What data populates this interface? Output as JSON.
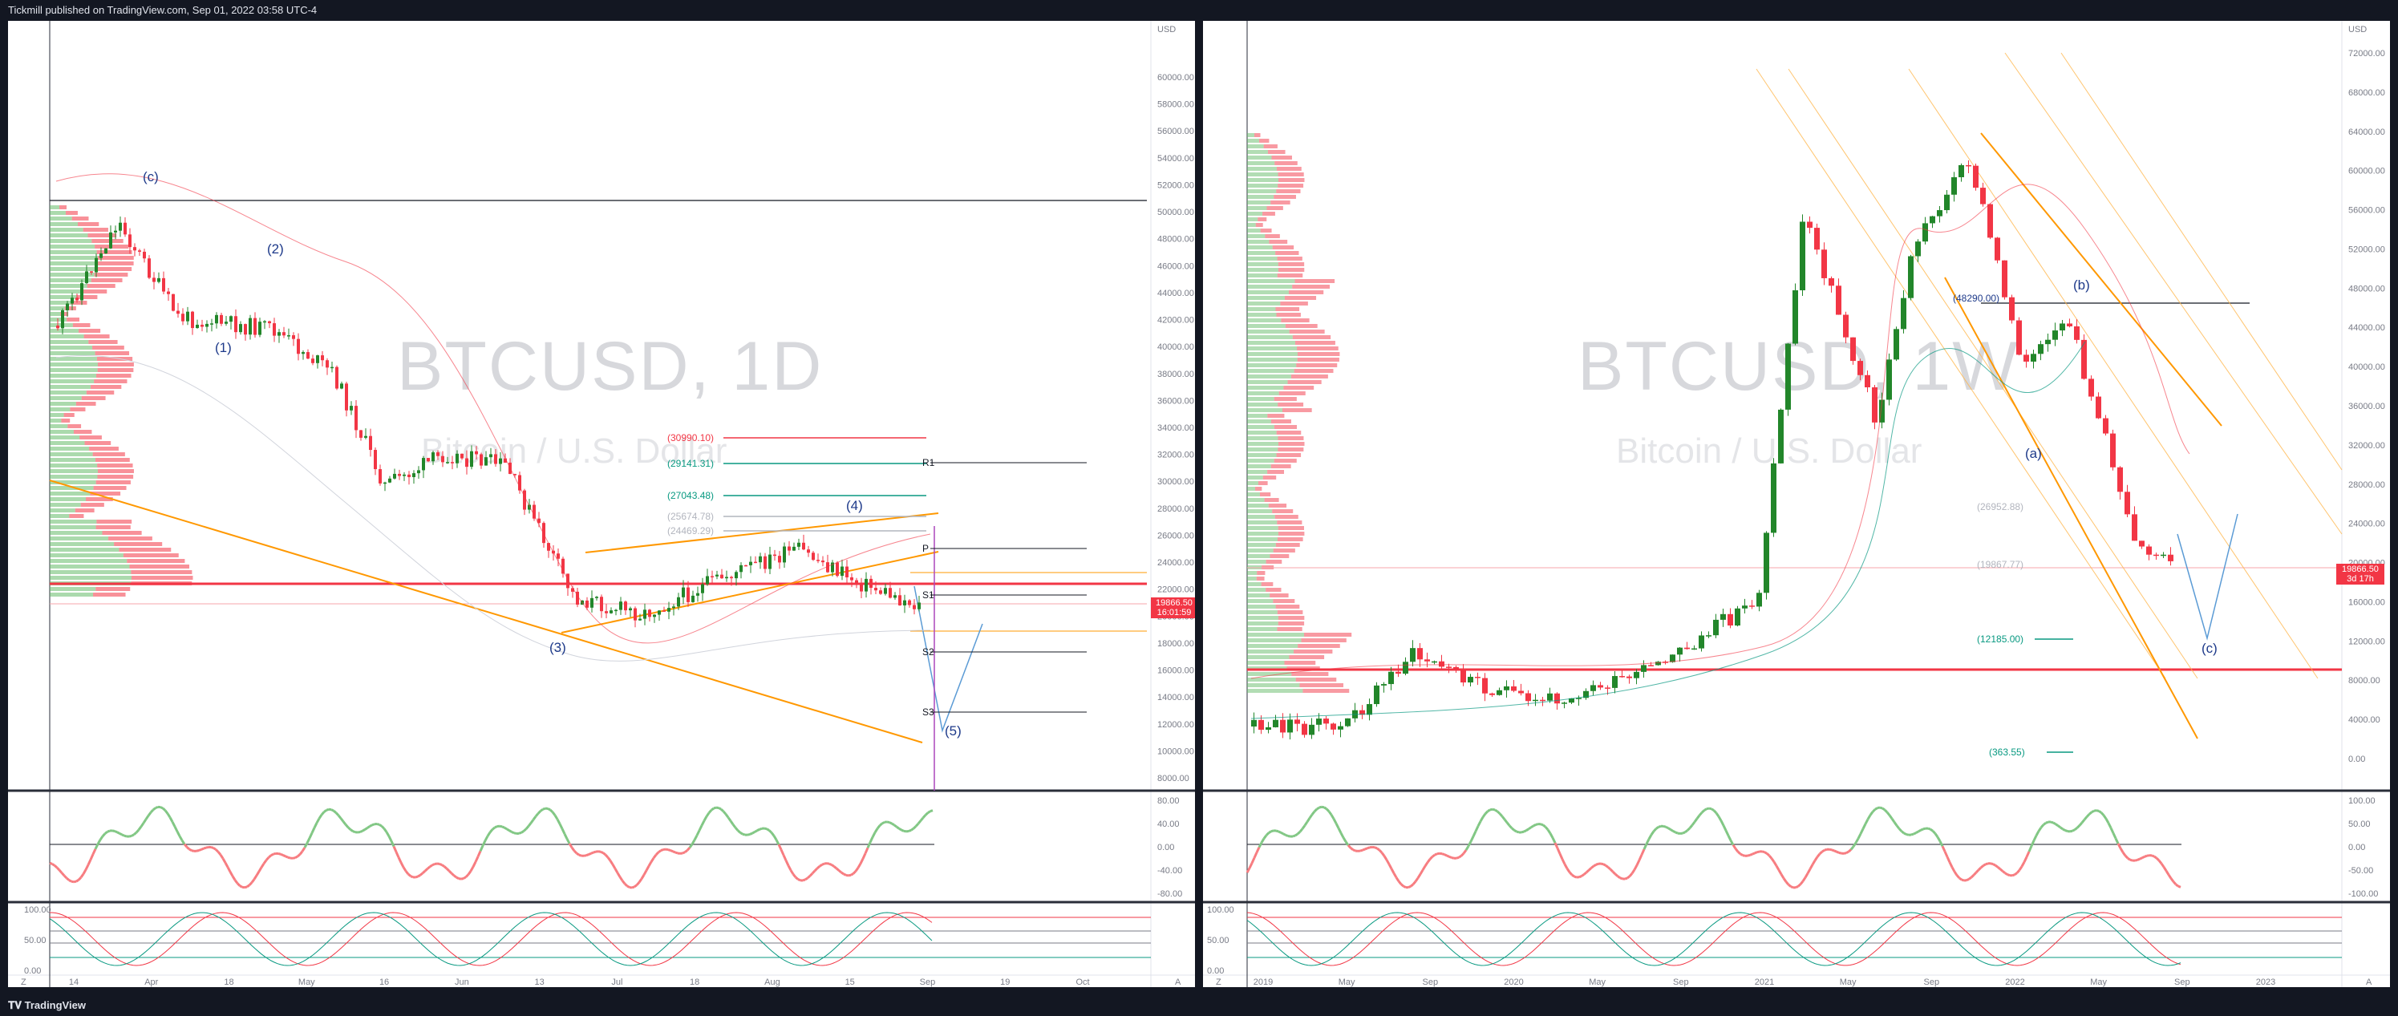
{
  "header": {
    "published": "Tickmill published on TradingView.com, Sep 01, 2022 03:58 UTC-4"
  },
  "footer": {
    "brand": "TradingView",
    "brand_icon": "tradingview-logo-icon"
  },
  "left_chart": {
    "symbol": "BTCUSD, 1D",
    "description": "Bitcoin / U.S. Dollar",
    "price_tag": {
      "price": "19866.50",
      "countdown": "16:01:59"
    },
    "axis_currency": "USD",
    "price_axis": [
      "60000.00",
      "58000.00",
      "56000.00",
      "54000.00",
      "52000.00",
      "50000.00",
      "48000.00",
      "46000.00",
      "44000.00",
      "42000.00",
      "40000.00",
      "38000.00",
      "36000.00",
      "34000.00",
      "32000.00",
      "30000.00",
      "28000.00",
      "26000.00",
      "24000.00",
      "22000.00",
      "20000.00",
      "18000.00",
      "16000.00",
      "14000.00",
      "12000.00",
      "10000.00",
      "8000.00"
    ],
    "time_axis": [
      "14",
      "Apr",
      "18",
      "May",
      "16",
      "Jun",
      "13",
      "Jul",
      "18",
      "Aug",
      "15",
      "Sep",
      "19",
      "Oct"
    ],
    "wave_labels": [
      "(c)",
      "(2)",
      "(1)",
      "(3)",
      "(4)",
      "(5)"
    ],
    "levels": [
      {
        "text": "(30990.10)",
        "color": "#f23645"
      },
      {
        "text": "(29141.31)",
        "color": "#089981"
      },
      {
        "text": "(27043.48)",
        "color": "#089981"
      },
      {
        "text": "(25674.78)",
        "color": "#b2b5be"
      },
      {
        "text": "(24469.29)",
        "color": "#b2b5be"
      }
    ],
    "pivots": [
      "R1",
      "P",
      "S1",
      "S2",
      "S3"
    ],
    "rsi_axis": [
      "80.00",
      "40.00",
      "0.00",
      "-40.00",
      "-80.00"
    ],
    "stoch_axis": [
      "100.00",
      "50.00",
      "0.00"
    ],
    "corner_buttons": [
      "Z",
      "A"
    ]
  },
  "right_chart": {
    "symbol": "BTCUSD, 1W",
    "description": "Bitcoin / U.S. Dollar",
    "price_tag": {
      "price": "19866.50",
      "countdown": "3d 17h"
    },
    "axis_currency": "USD",
    "price_axis": [
      "72000.00",
      "68000.00",
      "64000.00",
      "60000.00",
      "56000.00",
      "52000.00",
      "48000.00",
      "44000.00",
      "40000.00",
      "36000.00",
      "32000.00",
      "28000.00",
      "24000.00",
      "20000.00",
      "16000.00",
      "12000.00",
      "8000.00",
      "4000.00",
      "0.00"
    ],
    "time_axis": [
      "2019",
      "May",
      "Sep",
      "2020",
      "May",
      "Sep",
      "2021",
      "May",
      "Sep",
      "2022",
      "May",
      "Sep",
      "2023"
    ],
    "wave_labels": [
      "(b)",
      "(a)",
      "(c)"
    ],
    "levels": [
      {
        "text": "(48290.00)",
        "color": "#1e3a8a"
      },
      {
        "text": "(26952.88)",
        "color": "#b2b5be"
      },
      {
        "text": "(19867.77)",
        "color": "#b2b5be"
      },
      {
        "text": "(12185.00)",
        "color": "#089981"
      },
      {
        "text": "(363.55)",
        "color": "#089981"
      }
    ],
    "rsi_axis": [
      "100.00",
      "50.00",
      "0.00",
      "-50.00",
      "-100.00"
    ],
    "stoch_axis": [
      "100.00",
      "50.00",
      "0.00"
    ],
    "corner_buttons": [
      "Z",
      "A"
    ]
  },
  "colors": {
    "up": "#22862a",
    "down": "#f23645",
    "fib_orange": "#ff9800",
    "wave_blue": "#1e3a8a"
  }
}
